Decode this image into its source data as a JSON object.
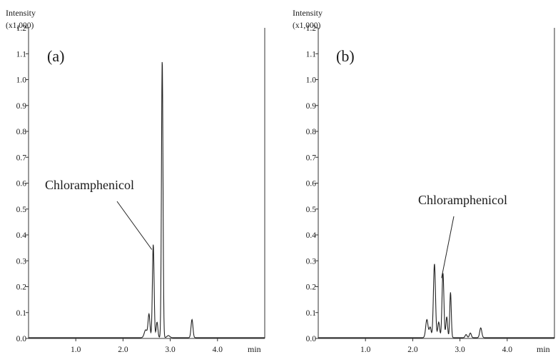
{
  "chart_data": [
    {
      "type": "line",
      "panel_label": "(a)",
      "ylabel": "Intensity",
      "yunit": "(x1,000)",
      "xlabel": "min",
      "xlim": [
        0.0,
        5.0
      ],
      "ylim": [
        0.0,
        1.2
      ],
      "xticks": [
        1.0,
        2.0,
        3.0,
        4.0
      ],
      "xtick_labels": [
        "1.0",
        "2.0",
        "3.0",
        "4.0"
      ],
      "yticks": [
        0.0,
        0.1,
        0.2,
        0.3,
        0.4,
        0.5,
        0.6,
        0.7,
        0.8,
        0.9,
        1.0,
        1.1,
        1.2
      ],
      "ytick_labels": [
        "0.0",
        "0.1",
        "0.2",
        "0.3",
        "0.4",
        "0.5",
        "0.6",
        "0.7",
        "0.8",
        "0.9",
        "1.0",
        "1.1",
        "1.2"
      ],
      "baseline": 0.003,
      "peaks": [
        {
          "x": 2.48,
          "y": 0.03,
          "w": 0.03
        },
        {
          "x": 2.55,
          "y": 0.09,
          "w": 0.02
        },
        {
          "x": 2.64,
          "y": 0.36,
          "w": 0.018
        },
        {
          "x": 2.72,
          "y": 0.06,
          "w": 0.018
        },
        {
          "x": 2.83,
          "y": 1.075,
          "w": 0.016
        },
        {
          "x": 2.96,
          "y": 0.008,
          "w": 0.03
        },
        {
          "x": 3.46,
          "y": 0.07,
          "w": 0.02
        }
      ],
      "annotation": {
        "text": "Chloramphenicol",
        "target_x": 2.64,
        "target_y": 0.36
      }
    },
    {
      "type": "line",
      "panel_label": "(b)",
      "ylabel": "Intensity",
      "yunit": "(x1,000)",
      "xlabel": "min",
      "xlim": [
        0.0,
        5.0
      ],
      "ylim": [
        0.0,
        1.2
      ],
      "xticks": [
        1.0,
        2.0,
        3.0,
        4.0
      ],
      "xtick_labels": [
        "1.0",
        "2.0",
        "3.0",
        "4.0"
      ],
      "yticks": [
        0.0,
        0.1,
        0.2,
        0.3,
        0.4,
        0.5,
        0.6,
        0.7,
        0.8,
        0.9,
        1.0,
        1.1,
        1.2
      ],
      "ytick_labels": [
        "0.0",
        "0.1",
        "0.2",
        "0.3",
        "0.4",
        "0.5",
        "0.6",
        "0.7",
        "0.8",
        "0.9",
        "1.0",
        "1.1",
        "1.2"
      ],
      "baseline": 0.003,
      "peaks": [
        {
          "x": 2.3,
          "y": 0.07,
          "w": 0.025
        },
        {
          "x": 2.37,
          "y": 0.04,
          "w": 0.02
        },
        {
          "x": 2.46,
          "y": 0.285,
          "w": 0.022
        },
        {
          "x": 2.55,
          "y": 0.06,
          "w": 0.02
        },
        {
          "x": 2.64,
          "y": 0.25,
          "w": 0.02
        },
        {
          "x": 2.72,
          "y": 0.08,
          "w": 0.018
        },
        {
          "x": 2.8,
          "y": 0.175,
          "w": 0.016
        },
        {
          "x": 3.13,
          "y": 0.012,
          "w": 0.02
        },
        {
          "x": 3.22,
          "y": 0.018,
          "w": 0.02
        },
        {
          "x": 3.44,
          "y": 0.038,
          "w": 0.022
        }
      ],
      "annotation": {
        "text": "Chloramphenicol",
        "target_x": 2.64,
        "target_y": 0.25
      }
    }
  ]
}
